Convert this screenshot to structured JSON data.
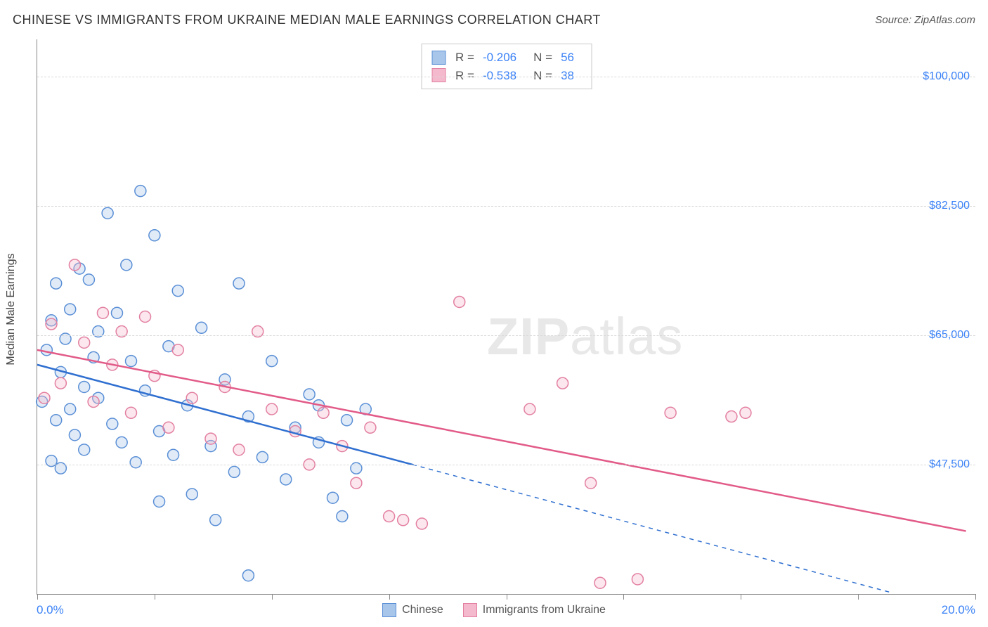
{
  "title": "CHINESE VS IMMIGRANTS FROM UKRAINE MEDIAN MALE EARNINGS CORRELATION CHART",
  "source_label": "Source: ",
  "source_name": "ZipAtlas.com",
  "watermark_a": "ZIP",
  "watermark_b": "atlas",
  "chart": {
    "type": "scatter",
    "y_axis_title": "Median Male Earnings",
    "x_min": 0.0,
    "x_max": 20.0,
    "x_min_label": "0.0%",
    "x_max_label": "20.0%",
    "x_ticks": [
      0,
      2.5,
      5,
      7.5,
      10,
      12.5,
      15,
      17.5,
      20
    ],
    "y_min": 30000,
    "y_max": 105000,
    "y_gridlines": [
      {
        "value": 47500,
        "label": "$47,500"
      },
      {
        "value": 65000,
        "label": "$65,000"
      },
      {
        "value": 82500,
        "label": "$82,500"
      },
      {
        "value": 100000,
        "label": "$100,000"
      }
    ],
    "background_color": "#ffffff",
    "grid_color": "#d9d9d9",
    "marker_radius": 8,
    "marker_stroke_width": 1.5,
    "marker_fill_opacity": 0.35,
    "line_width": 2.5,
    "series": [
      {
        "name": "Chinese",
        "color_stroke": "#5a8fd6",
        "color_fill": "#a8c6ea",
        "line_color": "#2f6fd0",
        "R": "-0.206",
        "N": "56",
        "trend": {
          "x1": 0.0,
          "y1": 61000,
          "x2": 8.0,
          "y2": 47500,
          "x_dash_to": 18.2,
          "y_dash_to": 30200
        },
        "points": [
          [
            0.1,
            56000
          ],
          [
            0.2,
            63000
          ],
          [
            0.3,
            48000
          ],
          [
            0.3,
            67000
          ],
          [
            0.4,
            53500
          ],
          [
            0.4,
            72000
          ],
          [
            0.5,
            60000
          ],
          [
            0.5,
            47000
          ],
          [
            0.6,
            64500
          ],
          [
            0.7,
            55000
          ],
          [
            0.7,
            68500
          ],
          [
            0.8,
            51500
          ],
          [
            0.9,
            74000
          ],
          [
            1.0,
            58000
          ],
          [
            1.0,
            49500
          ],
          [
            1.1,
            72500
          ],
          [
            1.2,
            62000
          ],
          [
            1.3,
            56500
          ],
          [
            1.3,
            65500
          ],
          [
            1.5,
            81500
          ],
          [
            1.6,
            53000
          ],
          [
            1.7,
            68000
          ],
          [
            1.8,
            50500
          ],
          [
            1.9,
            74500
          ],
          [
            2.0,
            61500
          ],
          [
            2.1,
            47800
          ],
          [
            2.2,
            84500
          ],
          [
            2.3,
            57500
          ],
          [
            2.5,
            78500
          ],
          [
            2.6,
            52000
          ],
          [
            2.6,
            42500
          ],
          [
            2.8,
            63500
          ],
          [
            2.9,
            48800
          ],
          [
            3.0,
            71000
          ],
          [
            3.2,
            55500
          ],
          [
            3.3,
            43500
          ],
          [
            3.5,
            66000
          ],
          [
            3.7,
            50000
          ],
          [
            3.8,
            40000
          ],
          [
            4.0,
            59000
          ],
          [
            4.2,
            46500
          ],
          [
            4.3,
            72000
          ],
          [
            4.5,
            54000
          ],
          [
            4.5,
            32500
          ],
          [
            4.8,
            48500
          ],
          [
            5.0,
            61500
          ],
          [
            5.3,
            45500
          ],
          [
            5.5,
            52500
          ],
          [
            5.8,
            57000
          ],
          [
            6.0,
            50500
          ],
          [
            6.0,
            55500
          ],
          [
            6.3,
            43000
          ],
          [
            6.5,
            40500
          ],
          [
            6.6,
            53500
          ],
          [
            6.8,
            47000
          ],
          [
            7.0,
            55000
          ]
        ]
      },
      {
        "name": "Immigrants from Ukraine",
        "color_stroke": "#e37fa0",
        "color_fill": "#f4b9cc",
        "line_color": "#e25b88",
        "R": "-0.538",
        "N": "38",
        "trend": {
          "x1": 0.0,
          "y1": 63000,
          "x2": 19.8,
          "y2": 38500
        },
        "points": [
          [
            0.15,
            56500
          ],
          [
            0.3,
            66500
          ],
          [
            0.5,
            58500
          ],
          [
            0.8,
            74500
          ],
          [
            1.0,
            64000
          ],
          [
            1.2,
            56000
          ],
          [
            1.4,
            68000
          ],
          [
            1.6,
            61000
          ],
          [
            1.8,
            65500
          ],
          [
            2.0,
            54500
          ],
          [
            2.3,
            67500
          ],
          [
            2.5,
            59500
          ],
          [
            2.8,
            52500
          ],
          [
            3.0,
            63000
          ],
          [
            3.3,
            56500
          ],
          [
            3.7,
            51000
          ],
          [
            4.0,
            58000
          ],
          [
            4.3,
            49500
          ],
          [
            4.7,
            65500
          ],
          [
            5.0,
            55000
          ],
          [
            5.5,
            52000
          ],
          [
            5.8,
            47500
          ],
          [
            6.1,
            54500
          ],
          [
            6.5,
            50000
          ],
          [
            6.8,
            45000
          ],
          [
            7.1,
            52500
          ],
          [
            7.5,
            40500
          ],
          [
            7.8,
            40000
          ],
          [
            8.2,
            39500
          ],
          [
            9.0,
            69500
          ],
          [
            10.5,
            55000
          ],
          [
            11.2,
            58500
          ],
          [
            11.8,
            45000
          ],
          [
            12.0,
            31500
          ],
          [
            13.5,
            54500
          ],
          [
            14.8,
            54000
          ],
          [
            15.1,
            54500
          ],
          [
            12.8,
            32000
          ]
        ]
      }
    ],
    "stat_labels": {
      "R": "R =",
      "N": "N ="
    }
  }
}
